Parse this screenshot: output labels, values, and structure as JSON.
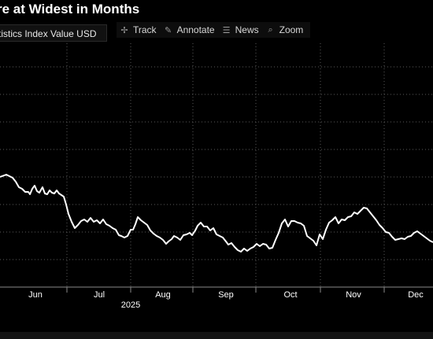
{
  "title": "re at Widest in Months",
  "legend": {
    "label": "tistics Index Value USD"
  },
  "toolbar": {
    "track_label": "Track",
    "annotate_label": "Annotate",
    "news_label": "News",
    "zoom_label": "Zoom"
  },
  "icons": {
    "track": "crosshair-icon",
    "annotate": "pencil-icon",
    "news": "news-icon",
    "zoom": "magnifier-icon"
  },
  "colors": {
    "background": "#000000",
    "line": "#ffffff",
    "grid": "#5a5a5a",
    "text": "#ffffff"
  },
  "chart_data": {
    "type": "line",
    "x_label_year": "2025",
    "x_ticks": [
      "Jun",
      "Jul",
      "Aug",
      "Sep",
      "Oct",
      "Nov",
      "Dec"
    ],
    "grid": "dashed",
    "series": [
      {
        "values": [
          [
            0,
            225
          ],
          [
            8,
            222
          ],
          [
            16,
            226
          ],
          [
            20,
            231
          ],
          [
            24,
            238
          ],
          [
            28,
            240
          ],
          [
            32,
            244
          ],
          [
            36,
            244
          ],
          [
            38,
            247
          ],
          [
            41,
            240
          ],
          [
            44,
            236
          ],
          [
            47,
            243
          ],
          [
            50,
            245
          ],
          [
            54,
            238
          ],
          [
            57,
            246
          ],
          [
            60,
            247
          ],
          [
            63,
            242
          ],
          [
            66,
            245
          ],
          [
            69,
            246
          ],
          [
            72,
            242
          ],
          [
            75,
            246
          ],
          [
            78,
            248
          ],
          [
            81,
            250
          ],
          [
            84,
            260
          ],
          [
            87,
            272
          ],
          [
            91,
            282
          ],
          [
            95,
            290
          ],
          [
            99,
            286
          ],
          [
            103,
            281
          ],
          [
            107,
            279
          ],
          [
            111,
            282
          ],
          [
            115,
            277
          ],
          [
            119,
            282
          ],
          [
            123,
            280
          ],
          [
            127,
            284
          ],
          [
            131,
            279
          ],
          [
            135,
            285
          ],
          [
            139,
            287
          ],
          [
            143,
            290
          ],
          [
            147,
            292
          ],
          [
            151,
            299
          ],
          [
            154,
            300
          ],
          [
            158,
            302
          ],
          [
            162,
            300
          ],
          [
            166,
            292
          ],
          [
            169,
            292
          ],
          [
            172,
            285
          ],
          [
            175,
            276
          ],
          [
            179,
            280
          ],
          [
            183,
            283
          ],
          [
            187,
            286
          ],
          [
            191,
            293
          ],
          [
            195,
            297
          ],
          [
            199,
            300
          ],
          [
            203,
            302
          ],
          [
            207,
            305
          ],
          [
            211,
            310
          ],
          [
            214,
            307
          ],
          [
            218,
            304
          ],
          [
            221,
            300
          ],
          [
            225,
            302
          ],
          [
            229,
            305
          ],
          [
            233,
            299
          ],
          [
            237,
            298
          ],
          [
            241,
            296
          ],
          [
            244,
            299
          ],
          [
            248,
            293
          ],
          [
            251,
            287
          ],
          [
            255,
            283
          ],
          [
            259,
            288
          ],
          [
            263,
            288
          ],
          [
            267,
            293
          ],
          [
            271,
            290
          ],
          [
            275,
            298
          ],
          [
            279,
            300
          ],
          [
            283,
            302
          ],
          [
            287,
            307
          ],
          [
            290,
            311
          ],
          [
            294,
            309
          ],
          [
            298,
            314
          ],
          [
            302,
            318
          ],
          [
            306,
            320
          ],
          [
            310,
            316
          ],
          [
            314,
            319
          ],
          [
            318,
            316
          ],
          [
            322,
            314
          ],
          [
            326,
            310
          ],
          [
            330,
            313
          ],
          [
            334,
            310
          ],
          [
            338,
            311
          ],
          [
            342,
            316
          ],
          [
            346,
            315
          ],
          [
            350,
            305
          ],
          [
            354,
            296
          ],
          [
            358,
            284
          ],
          [
            362,
            279
          ],
          [
            366,
            288
          ],
          [
            370,
            281
          ],
          [
            374,
            281
          ],
          [
            378,
            283
          ],
          [
            382,
            284
          ],
          [
            386,
            287
          ],
          [
            390,
            300
          ],
          [
            394,
            303
          ],
          [
            398,
            306
          ],
          [
            402,
            312
          ],
          [
            406,
            298
          ],
          [
            410,
            304
          ],
          [
            414,
            292
          ],
          [
            418,
            283
          ],
          [
            422,
            280
          ],
          [
            426,
            276
          ],
          [
            430,
            284
          ],
          [
            434,
            279
          ],
          [
            438,
            280
          ],
          [
            442,
            276
          ],
          [
            446,
            275
          ],
          [
            450,
            270
          ],
          [
            454,
            272
          ],
          [
            458,
            268
          ],
          [
            462,
            264
          ],
          [
            466,
            265
          ],
          [
            470,
            270
          ],
          [
            474,
            275
          ],
          [
            478,
            280
          ],
          [
            482,
            286
          ],
          [
            486,
            290
          ],
          [
            490,
            295
          ],
          [
            494,
            296
          ],
          [
            498,
            301
          ],
          [
            502,
            305
          ],
          [
            506,
            304
          ],
          [
            510,
            303
          ],
          [
            514,
            304
          ],
          [
            518,
            301
          ],
          [
            522,
            300
          ],
          [
            526,
            296
          ],
          [
            530,
            294
          ],
          [
            534,
            297
          ],
          [
            538,
            300
          ],
          [
            542,
            303
          ],
          [
            546,
            306
          ],
          [
            550,
            308
          ]
        ]
      }
    ]
  }
}
